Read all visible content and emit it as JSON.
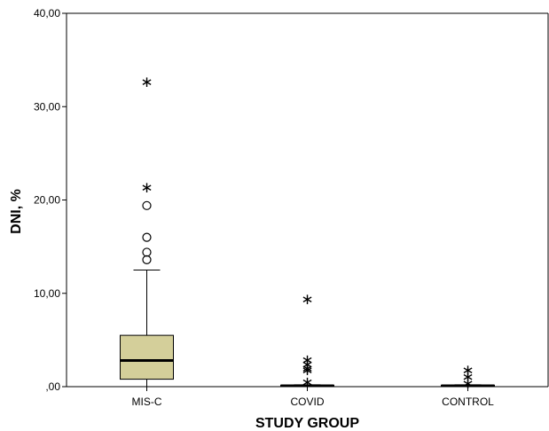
{
  "chart_data": {
    "type": "boxplot",
    "xlabel": "STUDY GROUP",
    "ylabel": "DNI, %",
    "ylim": [
      0,
      40
    ],
    "yticks": [
      0,
      10,
      20,
      30,
      40
    ],
    "ytick_labels": [
      ",00",
      "10,00",
      "20,00",
      "30,00",
      "40,00"
    ],
    "grid": false,
    "categories": [
      "MIS-C",
      "COVID",
      "CONTROL"
    ],
    "box_color": "#d4cf9a",
    "boxes": [
      {
        "name": "MIS-C",
        "whisker_low": 0.0,
        "q1": 0.8,
        "median": 2.8,
        "q3": 5.5,
        "whisker_high": 12.5,
        "outliers": [
          13.6,
          14.4,
          16.0,
          19.4
        ],
        "extremes": [
          21.4,
          32.7
        ]
      },
      {
        "name": "COVID",
        "whisker_low": 0.0,
        "q1": 0.0,
        "median": 0.1,
        "q3": 0.15,
        "whisker_high": 0.2,
        "outliers": [],
        "extremes": [
          0.5,
          1.8,
          2.0,
          2.4,
          2.9,
          9.4
        ]
      },
      {
        "name": "CONTROL",
        "whisker_low": 0.0,
        "q1": 0.0,
        "median": 0.1,
        "q3": 0.15,
        "whisker_high": 0.2,
        "outliers": [],
        "extremes": [
          0.4,
          1.1,
          1.8
        ]
      }
    ]
  }
}
